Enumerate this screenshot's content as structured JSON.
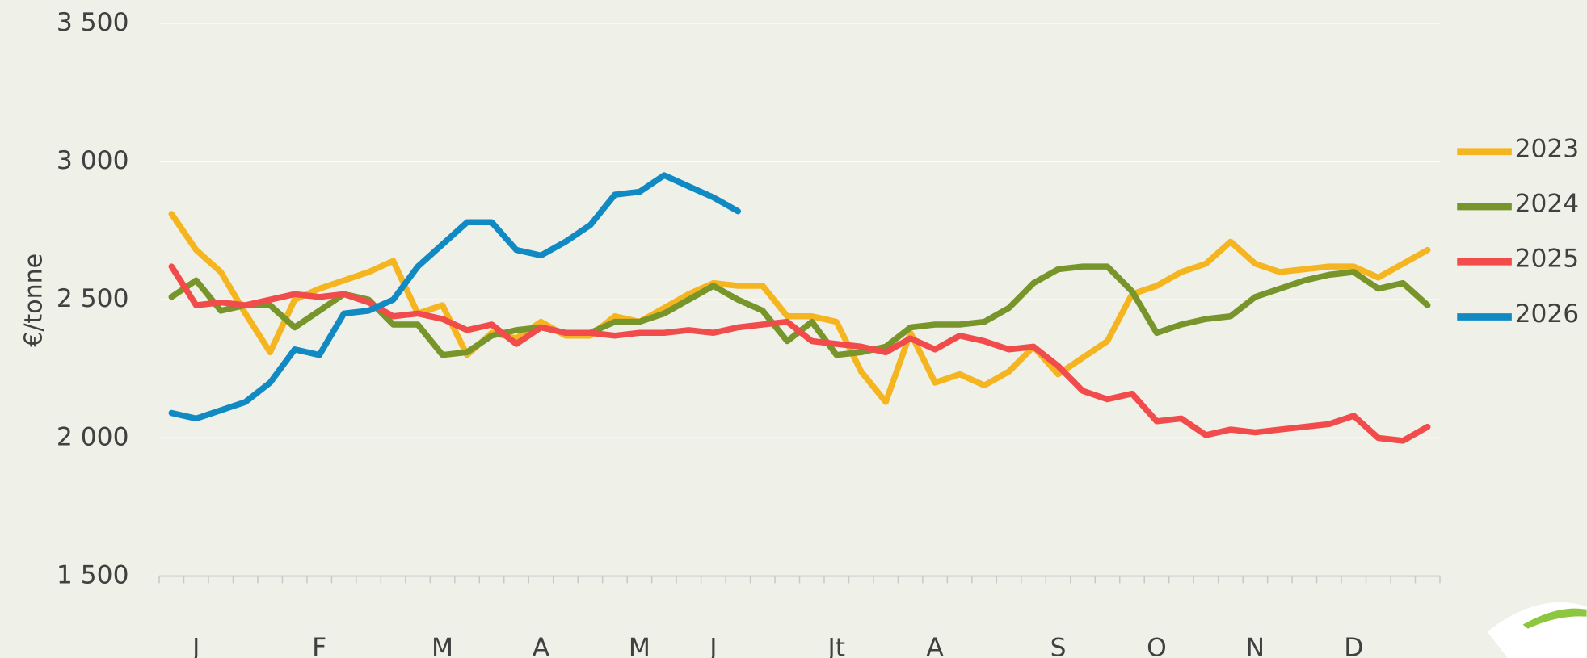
{
  "chart_data": {
    "type": "line",
    "y_label": "€/tonne",
    "categories": [
      null,
      "J",
      null,
      null,
      null,
      null,
      "F",
      null,
      null,
      null,
      null,
      "M",
      null,
      null,
      null,
      "A",
      null,
      null,
      null,
      "M",
      null,
      null,
      "J",
      null,
      null,
      null,
      null,
      "Jt",
      null,
      null,
      null,
      "A",
      null,
      null,
      null,
      null,
      "S",
      null,
      null,
      null,
      "O",
      null,
      null,
      null,
      "N",
      null,
      null,
      null,
      "D",
      null,
      null,
      null
    ],
    "series": [
      {
        "name": "2023",
        "color": "#f5b520",
        "values": [
          2810,
          2680,
          2600,
          2450,
          2310,
          2500,
          2540,
          2570,
          2600,
          2640,
          2450,
          2480,
          2300,
          2380,
          2360,
          2420,
          2370,
          2370,
          2440,
          2420,
          2470,
          2520,
          2560,
          2550,
          2550,
          2440,
          2440,
          2420,
          2240,
          2130,
          2380,
          2200,
          2230,
          2190,
          2240,
          2330,
          2230,
          2290,
          2350,
          2520,
          2550,
          2600,
          2630,
          2710,
          2630,
          2600,
          2610,
          2620,
          2620,
          2580,
          2630,
          2680
        ]
      },
      {
        "name": "2024",
        "color": "#77952a",
        "values": [
          2510,
          2570,
          2460,
          2480,
          2480,
          2400,
          2460,
          2520,
          2500,
          2410,
          2410,
          2300,
          2310,
          2370,
          2390,
          2400,
          2380,
          2380,
          2420,
          2420,
          2450,
          2500,
          2550,
          2500,
          2460,
          2350,
          2420,
          2300,
          2310,
          2330,
          2400,
          2410,
          2410,
          2420,
          2470,
          2560,
          2610,
          2620,
          2620,
          2530,
          2380,
          2410,
          2430,
          2440,
          2510,
          2540,
          2570,
          2590,
          2600,
          2540,
          2560,
          2480
        ]
      },
      {
        "name": "2025",
        "color": "#f24b4b",
        "values": [
          2620,
          2480,
          2490,
          2480,
          2500,
          2520,
          2510,
          2520,
          2490,
          2440,
          2450,
          2430,
          2390,
          2410,
          2340,
          2400,
          2380,
          2380,
          2370,
          2380,
          2380,
          2390,
          2380,
          2400,
          2410,
          2420,
          2350,
          2340,
          2330,
          2310,
          2360,
          2320,
          2370,
          2350,
          2320,
          2330,
          2260,
          2170,
          2140,
          2160,
          2060,
          2070,
          2010,
          2030,
          2020,
          2030,
          2040,
          2050,
          2080,
          2000,
          1990,
          2040
        ]
      },
      {
        "name": "2026",
        "color": "#118ac4",
        "values": [
          2090,
          2070,
          2100,
          2130,
          2200,
          2320,
          2300,
          2450,
          2460,
          2500,
          2620,
          2700,
          2780,
          2780,
          2680,
          2660,
          2710,
          2770,
          2880,
          2890,
          2950,
          2910,
          2870,
          2820,
          null,
          null,
          null,
          null,
          null,
          null,
          null,
          null,
          null,
          null,
          null,
          null,
          null,
          null,
          null,
          null,
          null,
          null,
          null,
          null,
          null,
          null,
          null,
          null,
          null,
          null,
          null,
          null
        ]
      }
    ],
    "ylim": [
      1500,
      3500
    ],
    "yticks": [
      {
        "value": 1500,
        "label": "1 500"
      },
      {
        "value": 2000,
        "label": "2 000"
      },
      {
        "value": 2500,
        "label": "2 500"
      },
      {
        "value": 3000,
        "label": "3 000"
      },
      {
        "value": 3500,
        "label": "3 500"
      }
    ],
    "grid": true,
    "legend": "right"
  }
}
